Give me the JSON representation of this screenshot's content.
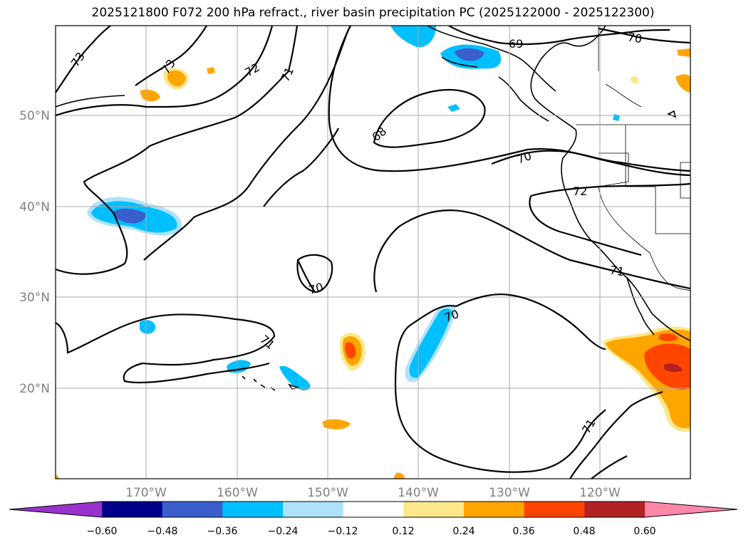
{
  "title": "2025121800 F072 200 hPa refract., river basin precipitation PC (2025122000 - 2025122300)",
  "map": {
    "lat_labels": [
      "50°N",
      "40°N",
      "30°N",
      "20°N"
    ],
    "lon_labels": [
      "170°W",
      "160°W",
      "150°W",
      "140°W",
      "130°W",
      "120°W"
    ],
    "contour_labels": [
      "73",
      "73",
      "72",
      "71",
      "69",
      "70",
      "68",
      "70",
      "72",
      "71",
      "70",
      "70",
      "71",
      "71"
    ]
  },
  "colorbar": {
    "ticks": [
      "−0.60",
      "−0.48",
      "−0.36",
      "−0.24",
      "−0.12",
      "0.12",
      "0.24",
      "0.36",
      "0.48",
      "0.60"
    ],
    "colors": [
      "#9932cc",
      "#00008b",
      "#3a5fcd",
      "#00bfff",
      "#aee2fa",
      "#ffffff",
      "#fbe88a",
      "#ffa500",
      "#ff4500",
      "#b22222",
      "#ff88aa"
    ]
  }
}
